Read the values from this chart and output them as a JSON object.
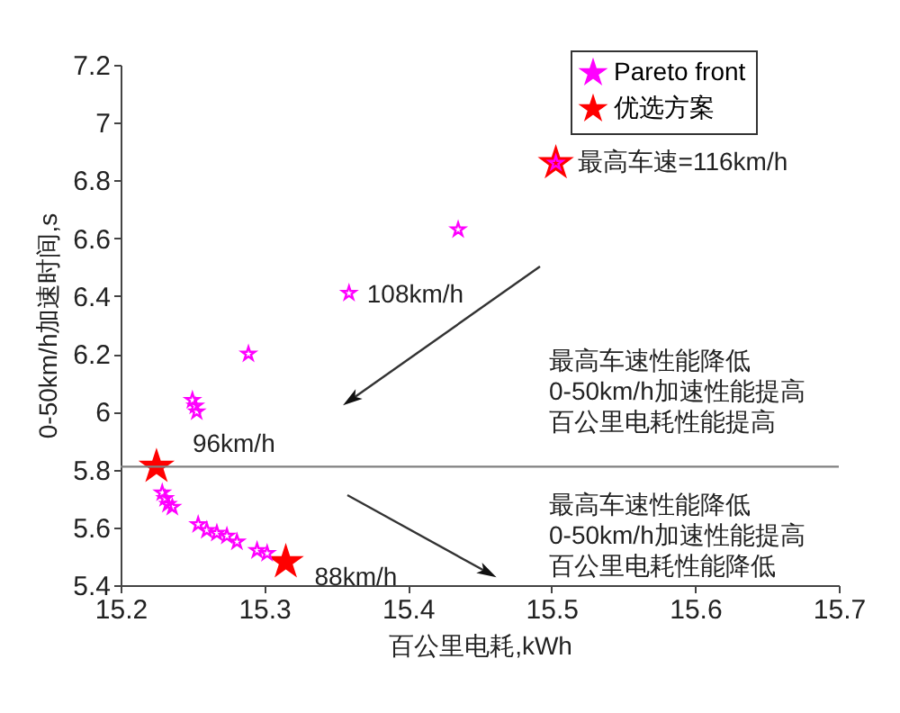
{
  "chart_data": {
    "type": "scatter",
    "xlabel": "百公里电耗,kWh",
    "ylabel": "0-50km/h加速时间,s",
    "xlim": [
      15.2,
      15.7
    ],
    "xticks": [
      15.2,
      15.3,
      15.4,
      15.5,
      15.6,
      15.7
    ],
    "ylim": [
      5.4,
      7.2
    ],
    "yticks": [
      5.4,
      5.6,
      5.8,
      6,
      6.2,
      6.4,
      6.6,
      6.8,
      7,
      7.2
    ],
    "grid": false,
    "legend": "top right",
    "marker": "star",
    "series": [
      {
        "name": "Pareto front",
        "color": "#ff00ff",
        "x": [
          15.503,
          15.435,
          15.359,
          15.289,
          15.25,
          15.252,
          15.253,
          15.229,
          15.231,
          15.233,
          15.236,
          15.254,
          15.26,
          15.267,
          15.274,
          15.281,
          15.295,
          15.302
        ],
        "values": [
          6.86,
          6.63,
          6.41,
          6.2,
          6.04,
          6.02,
          6.0,
          5.72,
          5.7,
          5.68,
          5.67,
          5.61,
          5.59,
          5.58,
          5.57,
          5.55,
          5.52,
          5.51
        ]
      },
      {
        "name": "优选方案",
        "color": "#ff0000",
        "x": [
          15.503,
          15.225,
          15.315
        ],
        "values": [
          6.86,
          5.81,
          5.48
        ]
      }
    ],
    "ref_lines": [
      {
        "axis": "y",
        "value": 5.81,
        "color": "#808080"
      }
    ],
    "annotations": [
      {
        "text": "最高车速=116km/h",
        "x": 15.503,
        "y": 6.86
      },
      {
        "text": "108km/h",
        "x": 15.359,
        "y": 6.41
      },
      {
        "text": "96km/h",
        "x": 15.225,
        "y": 5.81
      },
      {
        "text": "88km/h",
        "x": 15.315,
        "y": 5.48
      },
      "最高车速性能降低",
      "0-50km/h加速性能提高",
      "百公里电耗性能提高",
      "最高车速性能降低",
      "0-50km/h加速性能提高",
      "百公里电耗性能降低"
    ]
  }
}
